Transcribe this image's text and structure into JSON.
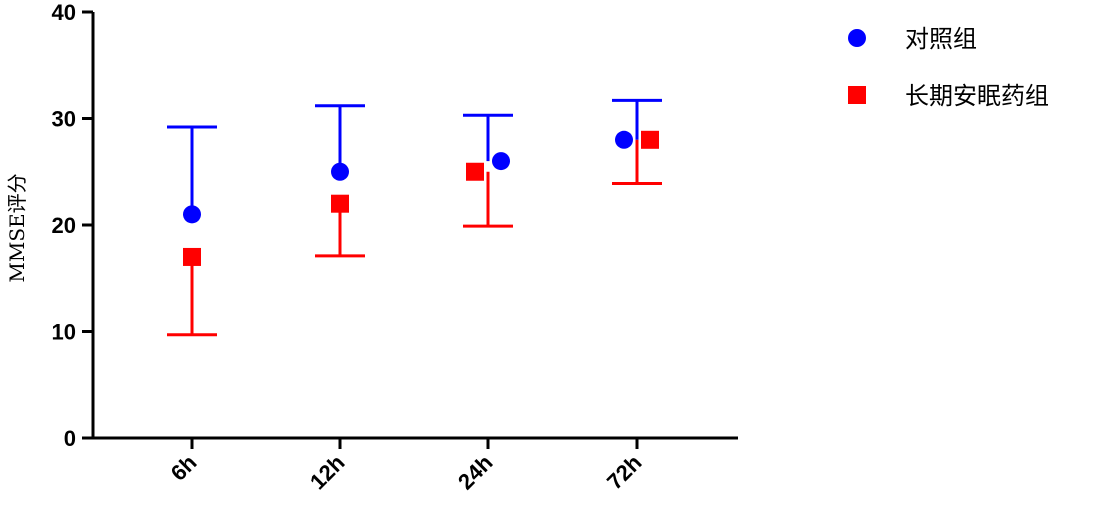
{
  "chart_data": {
    "type": "scatter",
    "title": "",
    "xlabel": "",
    "ylabel": "MMSE评分",
    "categories": [
      "6h",
      "12h",
      "24h",
      "72h"
    ],
    "ylim": [
      0,
      40
    ],
    "yticks": [
      0,
      10,
      20,
      30,
      40
    ],
    "grid": false,
    "legend_position": "top-right",
    "series": [
      {
        "name": "对照组",
        "marker": "circle",
        "color": "#0000ff",
        "values": [
          21,
          25,
          26,
          28
        ],
        "error_upper": [
          29.2,
          31.2,
          30.3,
          31.7
        ],
        "error_direction": "up"
      },
      {
        "name": "长期安眠药组",
        "marker": "square",
        "color": "#ff0000",
        "values": [
          17,
          22,
          25,
          28
        ],
        "error_lower": [
          9.7,
          17.1,
          19.9,
          23.9
        ],
        "error_direction": "down"
      }
    ]
  }
}
